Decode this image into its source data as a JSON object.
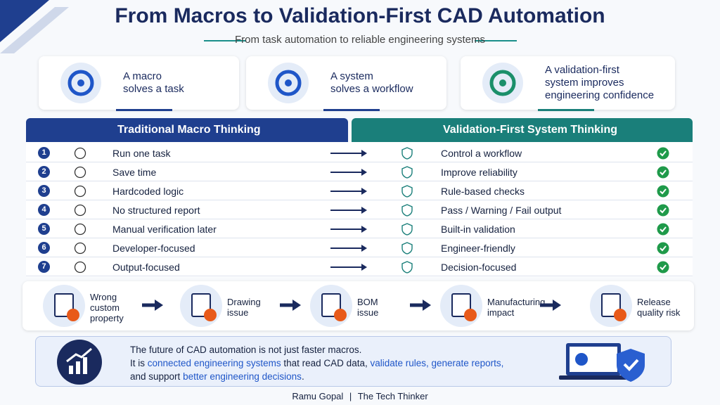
{
  "title": "From Macros to Validation-First CAD Automation",
  "subtitle": "From task automation to reliable engineering systems",
  "cards": [
    {
      "lines": [
        "A macro",
        "solves a task"
      ]
    },
    {
      "lines": [
        "A system",
        "solves a workflow"
      ]
    },
    {
      "lines": [
        "A validation-first",
        "system improves",
        "engineering confidence"
      ]
    }
  ],
  "comparison": {
    "left_header": "Traditional Macro Thinking",
    "right_header": "Validation-First System Thinking",
    "rows": [
      {
        "number": "1",
        "left": "Run one task",
        "right": "Control a workflow"
      },
      {
        "number": "2",
        "left": "Save time",
        "right": "Improve reliability"
      },
      {
        "number": "3",
        "left": "Hardcoded logic",
        "right": "Rule-based checks"
      },
      {
        "number": "4",
        "left": "No structured report",
        "right": "Pass / Warning / Fail output"
      },
      {
        "number": "5",
        "left": "Manual verification later",
        "right": "Built-in validation"
      },
      {
        "number": "6",
        "left": "Developer-focused",
        "right": "Engineer-friendly"
      },
      {
        "number": "7",
        "left": "Output-focused",
        "right": "Decision-focused"
      }
    ]
  },
  "flow": [
    {
      "lines": [
        "Wrong",
        "custom",
        "property"
      ]
    },
    {
      "lines": [
        "Drawing",
        "issue"
      ]
    },
    {
      "lines": [
        "BOM",
        "issue"
      ]
    },
    {
      "lines": [
        "Manufacturing",
        "impact"
      ]
    },
    {
      "lines": [
        "Release",
        "quality risk"
      ]
    }
  ],
  "conclusion": {
    "lines": [
      [
        {
          "text": "The future of CAD automation is not just faster macros.",
          "highlight": false
        }
      ],
      [
        {
          "text": "It is ",
          "highlight": false
        },
        {
          "text": "connected engineering systems",
          "highlight": true
        },
        {
          "text": " that read CAD data, ",
          "highlight": false
        },
        {
          "text": "validate rules, generate reports,",
          "highlight": true
        }
      ],
      [
        {
          "text": "and support ",
          "highlight": false
        },
        {
          "text": "better engineering decisions",
          "highlight": true
        },
        {
          "text": ".",
          "highlight": false
        }
      ]
    ]
  },
  "footer": {
    "author": "Ramu Gopal",
    "separator": "|",
    "brand": "The Tech Thinker"
  }
}
